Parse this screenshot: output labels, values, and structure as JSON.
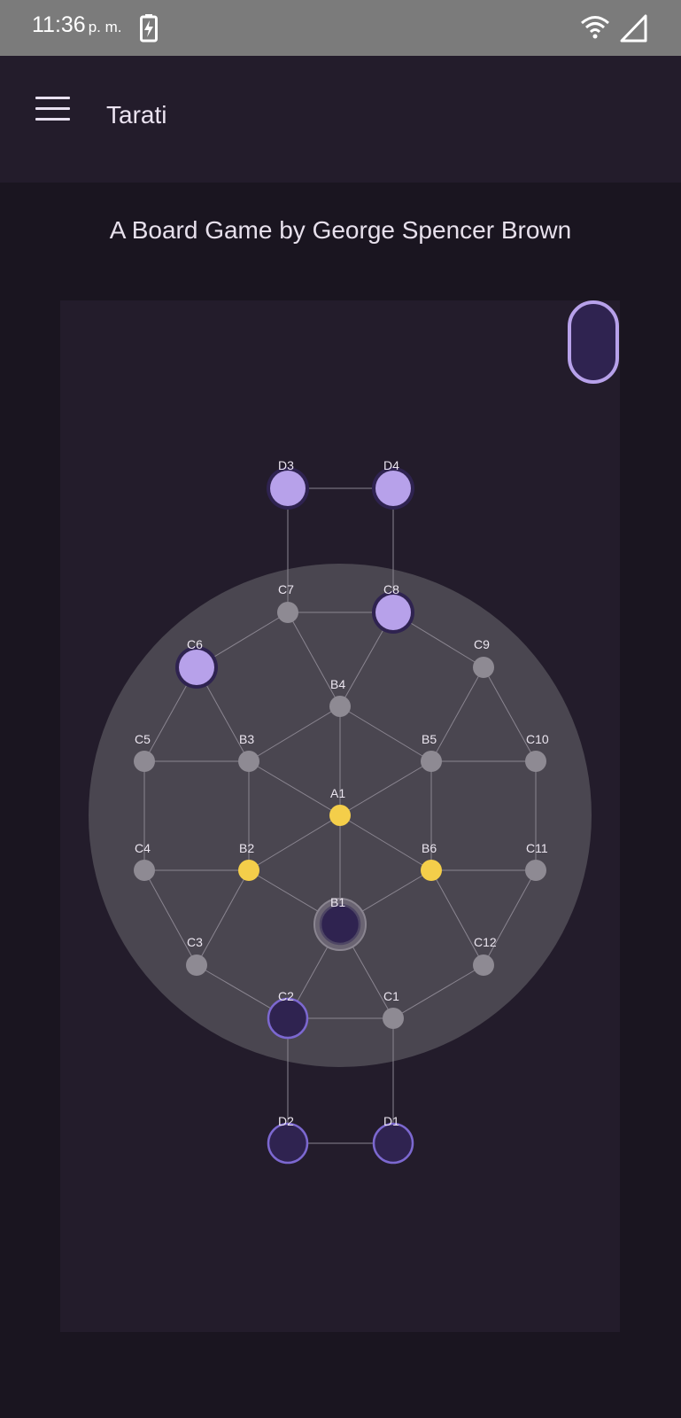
{
  "status_bar": {
    "time": "11:36",
    "ampm": "p. m.",
    "icons": [
      "battery-charging-icon",
      "wifi-icon",
      "cell-signal-icon"
    ]
  },
  "app_bar": {
    "title": "Tarati",
    "menu_icon": "hamburger-menu-icon"
  },
  "subtitle": "A Board Game by George Spencer Brown",
  "colors": {
    "background": "#1a1520",
    "surface": "#231c2b",
    "board_circle": "#4a4650",
    "empty_node": "#8e8a93",
    "neutral_piece": "#f4ce4a",
    "light_piece": "#b7a1ea",
    "dark_piece": "#2f2350",
    "dark_piece_ring": "#7c68d0",
    "edge": "#8a8590"
  },
  "board": {
    "nodes": [
      {
        "id": "A1",
        "label": "A1",
        "piece": "neutral"
      },
      {
        "id": "B1",
        "label": "B1",
        "piece": "dark",
        "selected": true
      },
      {
        "id": "B2",
        "label": "B2",
        "piece": "neutral"
      },
      {
        "id": "B3",
        "label": "B3",
        "piece": "empty"
      },
      {
        "id": "B4",
        "label": "B4",
        "piece": "empty"
      },
      {
        "id": "B5",
        "label": "B5",
        "piece": "empty"
      },
      {
        "id": "B6",
        "label": "B6",
        "piece": "neutral"
      },
      {
        "id": "C1",
        "label": "C1",
        "piece": "empty"
      },
      {
        "id": "C2",
        "label": "C2",
        "piece": "dark"
      },
      {
        "id": "C3",
        "label": "C3",
        "piece": "empty"
      },
      {
        "id": "C4",
        "label": "C4",
        "piece": "empty"
      },
      {
        "id": "C5",
        "label": "C5",
        "piece": "empty"
      },
      {
        "id": "C6",
        "label": "C6",
        "piece": "light"
      },
      {
        "id": "C7",
        "label": "C7",
        "piece": "empty"
      },
      {
        "id": "C8",
        "label": "C8",
        "piece": "light"
      },
      {
        "id": "C9",
        "label": "C9",
        "piece": "empty"
      },
      {
        "id": "C10",
        "label": "C10",
        "piece": "empty"
      },
      {
        "id": "C11",
        "label": "C11",
        "piece": "empty"
      },
      {
        "id": "C12",
        "label": "C12",
        "piece": "empty"
      },
      {
        "id": "D1",
        "label": "D1",
        "piece": "dark"
      },
      {
        "id": "D2",
        "label": "D2",
        "piece": "dark"
      },
      {
        "id": "D3",
        "label": "D3",
        "piece": "light"
      },
      {
        "id": "D4",
        "label": "D4",
        "piece": "light"
      }
    ]
  },
  "turn_indicator": {
    "player": "dark"
  }
}
